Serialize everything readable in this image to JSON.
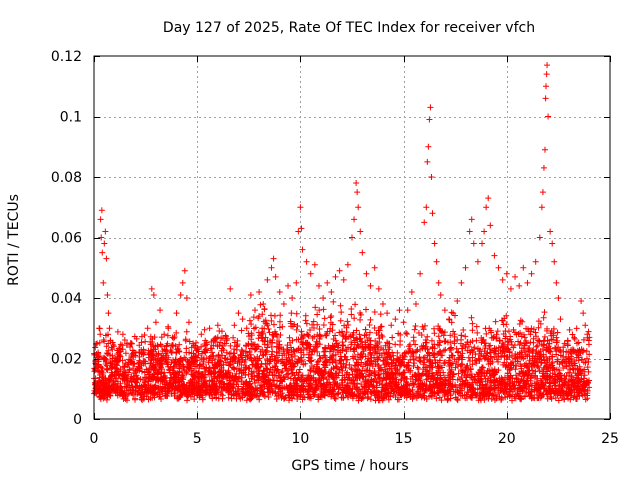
{
  "chart_data": {
    "type": "scatter",
    "title": "Day 127 of 2025, Rate Of TEC Index for receiver vfch",
    "xlabel": "GPS time / hours",
    "ylabel": "ROTI / TECUs",
    "xlim": [
      0,
      25
    ],
    "ylim": [
      0,
      0.12
    ],
    "xticks": [
      0,
      5,
      10,
      15,
      20,
      25
    ],
    "xtick_labels": [
      "0",
      "5",
      "10",
      "15",
      "20",
      "25"
    ],
    "yticks": [
      0,
      0.02,
      0.04,
      0.06,
      0.08,
      0.1,
      0.12
    ],
    "ytick_labels": [
      "0",
      "0.02",
      "0.04",
      "0.06",
      "0.08",
      "0.1",
      "0.12"
    ],
    "grid": true,
    "marker": "plus",
    "color": "#ff0000",
    "series": [
      {
        "name": "ROTI",
        "points": [
          [
            0.05,
            0.012
          ],
          [
            0.1,
            0.018
          ],
          [
            0.15,
            0.025
          ],
          [
            0.2,
            0.022
          ],
          [
            0.25,
            0.03
          ],
          [
            0.3,
            0.028
          ],
          [
            0.32,
            0.066
          ],
          [
            0.35,
            0.06
          ],
          [
            0.38,
            0.069
          ],
          [
            0.4,
            0.055
          ],
          [
            0.45,
            0.045
          ],
          [
            0.5,
            0.058
          ],
          [
            0.55,
            0.062
          ],
          [
            0.6,
            0.053
          ],
          [
            0.65,
            0.041
          ],
          [
            0.7,
            0.035
          ],
          [
            0.75,
            0.03
          ],
          [
            0.8,
            0.026
          ],
          [
            0.9,
            0.02
          ],
          [
            1.0,
            0.018
          ],
          [
            1.2,
            0.022
          ],
          [
            1.4,
            0.028
          ],
          [
            1.6,
            0.025
          ],
          [
            1.8,
            0.019
          ],
          [
            2.0,
            0.021
          ],
          [
            2.2,
            0.017
          ],
          [
            2.4,
            0.023
          ],
          [
            2.6,
            0.03
          ],
          [
            2.8,
            0.043
          ],
          [
            2.9,
            0.041
          ],
          [
            3.0,
            0.032
          ],
          [
            3.2,
            0.036
          ],
          [
            3.4,
            0.028
          ],
          [
            3.6,
            0.03
          ],
          [
            3.8,
            0.027
          ],
          [
            4.0,
            0.035
          ],
          [
            4.2,
            0.041
          ],
          [
            4.3,
            0.045
          ],
          [
            4.4,
            0.049
          ],
          [
            4.5,
            0.04
          ],
          [
            4.6,
            0.032
          ],
          [
            4.8,
            0.025
          ],
          [
            5.0,
            0.023
          ],
          [
            5.2,
            0.028
          ],
          [
            5.4,
            0.022
          ],
          [
            5.6,
            0.03
          ],
          [
            5.8,
            0.026
          ],
          [
            6.0,
            0.031
          ],
          [
            6.2,
            0.029
          ],
          [
            6.4,
            0.025
          ],
          [
            6.6,
            0.043
          ],
          [
            6.8,
            0.031
          ],
          [
            7.0,
            0.035
          ],
          [
            7.2,
            0.033
          ],
          [
            7.4,
            0.03
          ],
          [
            7.6,
            0.041
          ],
          [
            7.8,
            0.036
          ],
          [
            8.0,
            0.042
          ],
          [
            8.2,
            0.038
          ],
          [
            8.4,
            0.046
          ],
          [
            8.6,
            0.05
          ],
          [
            8.7,
            0.053
          ],
          [
            8.8,
            0.047
          ],
          [
            9.0,
            0.042
          ],
          [
            9.2,
            0.038
          ],
          [
            9.4,
            0.044
          ],
          [
            9.6,
            0.04
          ],
          [
            9.8,
            0.045
          ],
          [
            9.9,
            0.062
          ],
          [
            10.0,
            0.07
          ],
          [
            10.05,
            0.063
          ],
          [
            10.1,
            0.056
          ],
          [
            10.3,
            0.052
          ],
          [
            10.5,
            0.048
          ],
          [
            10.7,
            0.051
          ],
          [
            10.9,
            0.044
          ],
          [
            11.1,
            0.04
          ],
          [
            11.3,
            0.045
          ],
          [
            11.5,
            0.042
          ],
          [
            11.7,
            0.047
          ],
          [
            11.9,
            0.049
          ],
          [
            12.1,
            0.046
          ],
          [
            12.3,
            0.051
          ],
          [
            12.5,
            0.06
          ],
          [
            12.6,
            0.066
          ],
          [
            12.7,
            0.078
          ],
          [
            12.75,
            0.075
          ],
          [
            12.8,
            0.07
          ],
          [
            12.9,
            0.062
          ],
          [
            13.0,
            0.055
          ],
          [
            13.2,
            0.048
          ],
          [
            13.4,
            0.044
          ],
          [
            13.6,
            0.05
          ],
          [
            13.8,
            0.043
          ],
          [
            14.0,
            0.038
          ],
          [
            14.2,
            0.035
          ],
          [
            14.4,
            0.031
          ],
          [
            14.6,
            0.033
          ],
          [
            14.8,
            0.036
          ],
          [
            15.0,
            0.032
          ],
          [
            15.2,
            0.036
          ],
          [
            15.4,
            0.042
          ],
          [
            15.6,
            0.038
          ],
          [
            15.8,
            0.048
          ],
          [
            16.0,
            0.065
          ],
          [
            16.1,
            0.07
          ],
          [
            16.15,
            0.085
          ],
          [
            16.2,
            0.09
          ],
          [
            16.25,
            0.099
          ],
          [
            16.3,
            0.103
          ],
          [
            16.35,
            0.08
          ],
          [
            16.4,
            0.068
          ],
          [
            16.5,
            0.058
          ],
          [
            16.6,
            0.052
          ],
          [
            16.7,
            0.045
          ],
          [
            16.8,
            0.041
          ],
          [
            17.0,
            0.036
          ],
          [
            17.2,
            0.033
          ],
          [
            17.4,
            0.035
          ],
          [
            17.6,
            0.039
          ],
          [
            17.8,
            0.045
          ],
          [
            18.0,
            0.05
          ],
          [
            18.2,
            0.062
          ],
          [
            18.3,
            0.066
          ],
          [
            18.4,
            0.058
          ],
          [
            18.6,
            0.052
          ],
          [
            18.8,
            0.058
          ],
          [
            18.9,
            0.062
          ],
          [
            19.0,
            0.07
          ],
          [
            19.1,
            0.073
          ],
          [
            19.2,
            0.064
          ],
          [
            19.4,
            0.054
          ],
          [
            19.6,
            0.05
          ],
          [
            19.8,
            0.046
          ],
          [
            20.0,
            0.048
          ],
          [
            20.2,
            0.043
          ],
          [
            20.4,
            0.047
          ],
          [
            20.6,
            0.044
          ],
          [
            20.8,
            0.05
          ],
          [
            21.0,
            0.045
          ],
          [
            21.2,
            0.048
          ],
          [
            21.4,
            0.052
          ],
          [
            21.6,
            0.06
          ],
          [
            21.7,
            0.07
          ],
          [
            21.75,
            0.075
          ],
          [
            21.8,
            0.083
          ],
          [
            21.85,
            0.089
          ],
          [
            21.88,
            0.106
          ],
          [
            21.9,
            0.11
          ],
          [
            21.93,
            0.114
          ],
          [
            21.95,
            0.117
          ],
          [
            22.0,
            0.1
          ],
          [
            22.1,
            0.062
          ],
          [
            22.2,
            0.058
          ],
          [
            22.3,
            0.052
          ],
          [
            22.4,
            0.045
          ],
          [
            22.5,
            0.04
          ],
          [
            22.6,
            0.033
          ],
          [
            22.8,
            0.025
          ],
          [
            23.0,
            0.02
          ],
          [
            23.2,
            0.023
          ],
          [
            23.4,
            0.025
          ],
          [
            23.6,
            0.039
          ],
          [
            23.7,
            0.035
          ],
          [
            23.8,
            0.031
          ],
          [
            23.9,
            0.028
          ],
          [
            24.0,
            0.027
          ]
        ]
      }
    ]
  }
}
